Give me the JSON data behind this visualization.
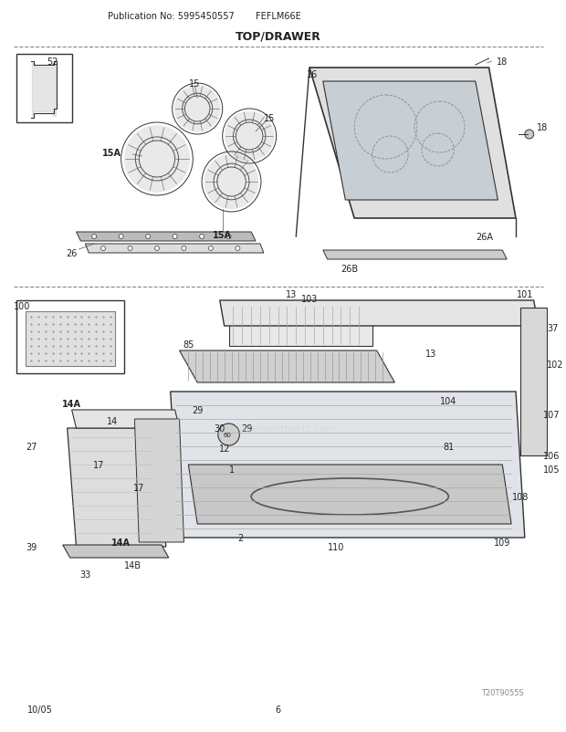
{
  "pub_no": "Publication No: 5995450557",
  "model": "FEFLM66E",
  "section": "TOP/DRAWER",
  "date": "10/05",
  "page": "6",
  "bg_color": "#ffffff",
  "line_color": "#333333",
  "text_color": "#222222",
  "watermark": "eplacementparts.com",
  "diagram_image_code": "T20T9055S",
  "top_labels": [
    "52",
    "15",
    "15",
    "15A",
    "15A",
    "26",
    "16",
    "18",
    "18",
    "26A",
    "26B"
  ],
  "bottom_labels": [
    "100",
    "103",
    "13",
    "101",
    "37",
    "102",
    "85",
    "13",
    "104",
    "107",
    "106",
    "105",
    "109",
    "108",
    "81",
    "29",
    "30",
    "12",
    "1",
    "2",
    "14A",
    "14",
    "17",
    "17",
    "14A",
    "14B",
    "27",
    "39",
    "33",
    "110"
  ]
}
